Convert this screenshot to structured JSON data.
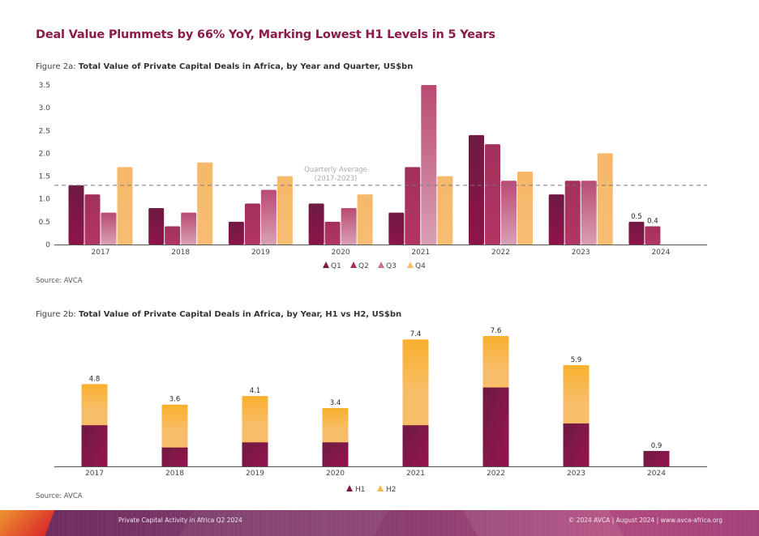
{
  "headline": "Deal Value Plummets by 66% YoY, Marking Lowest H1 Levels in 5 Years",
  "colors": {
    "headline": "#8b1a4a",
    "q1": "#7a1a45",
    "q2": "#a83060",
    "q3": "#c9708f",
    "q4": "#f7bb6e",
    "h1": "#7f1a48",
    "h2": "#f7b648",
    "axis": "#555555",
    "average_line": "#777777"
  },
  "figure_a": {
    "prefix": "Figure 2a: ",
    "title": "Total Value of Private Capital Deals in Africa, by Year and Quarter, US$bn",
    "source": "Source: AVCA"
  },
  "figure_b": {
    "prefix": "Figure 2b: ",
    "title": "Total Value of Private Capital Deals in Africa, by Year, H1 vs H2, US$bn",
    "source": "Source: AVCA"
  },
  "footer": {
    "left": "Private Capital Activity in Africa Q2 2024",
    "right": "© 2024 AVCA  |  August 2024  |  www.avca-africa.org"
  },
  "chart_data": [
    {
      "type": "bar",
      "title": "Total Value of Private Capital Deals in Africa, by Year and Quarter, US$bn",
      "xlabel": "",
      "ylabel": "US$bn",
      "categories": [
        "2017",
        "2018",
        "2019",
        "2020",
        "2021",
        "2022",
        "2023",
        "2024"
      ],
      "ylim": [
        0,
        3.5
      ],
      "yticks": [
        "0",
        "0.5",
        "1.0",
        "1.5",
        "2.0",
        "2.5",
        "3.0",
        "3.5"
      ],
      "ytick_values": [
        0,
        0.5,
        1.0,
        1.5,
        2.0,
        2.5,
        3.0,
        3.5
      ],
      "grid": false,
      "legend_position": "bottom",
      "series": [
        {
          "name": "Q1",
          "values": [
            1.3,
            0.8,
            0.5,
            0.9,
            0.7,
            2.4,
            1.1,
            0.5
          ]
        },
        {
          "name": "Q2",
          "values": [
            1.1,
            0.4,
            0.9,
            0.5,
            1.7,
            2.2,
            1.4,
            0.4
          ]
        },
        {
          "name": "Q3",
          "values": [
            0.7,
            0.7,
            1.2,
            0.8,
            3.5,
            1.4,
            1.4,
            null
          ]
        },
        {
          "name": "Q4",
          "values": [
            1.7,
            1.8,
            1.5,
            1.1,
            1.5,
            1.6,
            2.0,
            null
          ]
        }
      ],
      "data_labels": [
        {
          "category": "2024",
          "series": "Q1",
          "text": "0.5"
        },
        {
          "category": "2024",
          "series": "Q2",
          "text": "0.4"
        }
      ],
      "reference_line": {
        "value": 1.3,
        "label_line1": "Quarterly Average",
        "label_line2": "(2017-2023)"
      }
    },
    {
      "type": "bar",
      "stacked": true,
      "title": "Total Value of Private Capital Deals in Africa, by Year, H1 vs H2, US$bn",
      "xlabel": "",
      "ylabel": "US$bn",
      "categories": [
        "2017",
        "2018",
        "2019",
        "2020",
        "2021",
        "2022",
        "2023",
        "2024"
      ],
      "ylim": [
        0,
        7.6
      ],
      "grid": false,
      "legend_position": "bottom",
      "series": [
        {
          "name": "H1",
          "values": [
            2.4,
            1.1,
            1.4,
            1.4,
            2.4,
            4.6,
            2.5,
            0.9
          ]
        },
        {
          "name": "H2",
          "values": [
            2.4,
            2.5,
            2.7,
            2.0,
            5.0,
            3.0,
            3.4,
            0
          ]
        }
      ],
      "totals": [
        "4.8",
        "3.6",
        "4.1",
        "3.4",
        "7.4",
        "7.6",
        "5.9",
        "0.9"
      ]
    }
  ]
}
